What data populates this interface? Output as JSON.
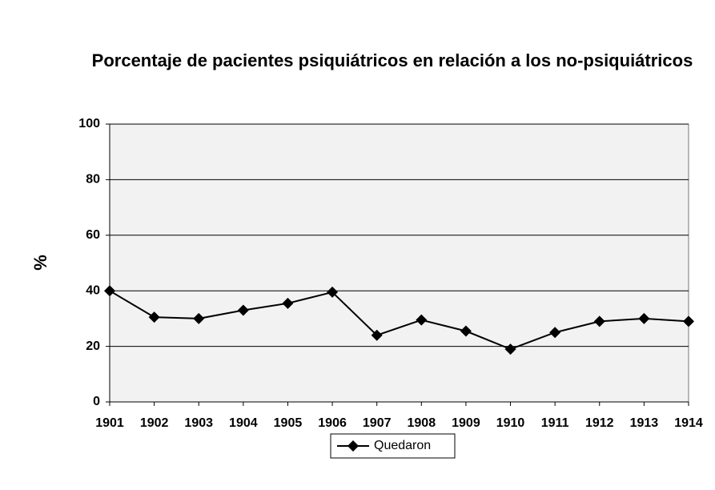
{
  "chart_data": {
    "type": "line",
    "title": "Porcentaje de pacientes psiquiátricos en relación a los no-psiquiátricos",
    "y_label": "%",
    "categories": [
      "1901",
      "1902",
      "1903",
      "1904",
      "1905",
      "1906",
      "1907",
      "1908",
      "1909",
      "1910",
      "1911",
      "1912",
      "1913",
      "1914"
    ],
    "series": [
      {
        "name": "Quedaron",
        "color": "#000000",
        "values": [
          40,
          30.5,
          30,
          33,
          35.5,
          39.5,
          24,
          29.5,
          25.5,
          19,
          25,
          29,
          30,
          29
        ]
      }
    ],
    "ylim": [
      0,
      100
    ],
    "yticks": [
      0,
      20,
      40,
      60,
      80,
      100
    ],
    "grid": true,
    "legend": "bottom"
  }
}
